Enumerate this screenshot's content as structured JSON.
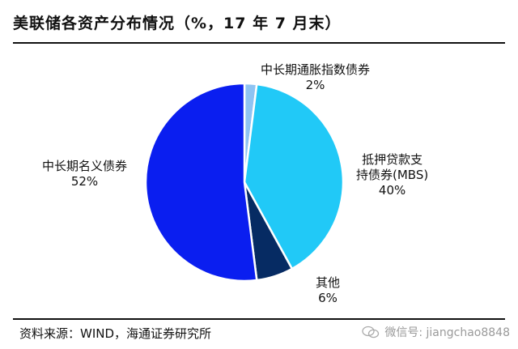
{
  "title": "美联储各资产分布情况（%，17 年 7 月末）",
  "source": "资料来源：WIND，海通证券研究所",
  "watermark": "微信号: jiangchao8848",
  "chart_data": {
    "type": "pie",
    "slices": [
      {
        "label": "中长期通胀指数债券",
        "value": 2,
        "value_text": "2%",
        "color": "#8EC3F2"
      },
      {
        "label": "抵押贷款支持债券(MBS)",
        "label_lines": [
          "抵押贷款支",
          "持债券(MBS)"
        ],
        "value": 40,
        "value_text": "40%",
        "color": "#21C9F7"
      },
      {
        "label": "其他",
        "value": 6,
        "value_text": "6%",
        "color": "#062B63"
      },
      {
        "label": "中长期名义债券",
        "value": 52,
        "value_text": "52%",
        "color": "#0A1EF0"
      }
    ]
  }
}
